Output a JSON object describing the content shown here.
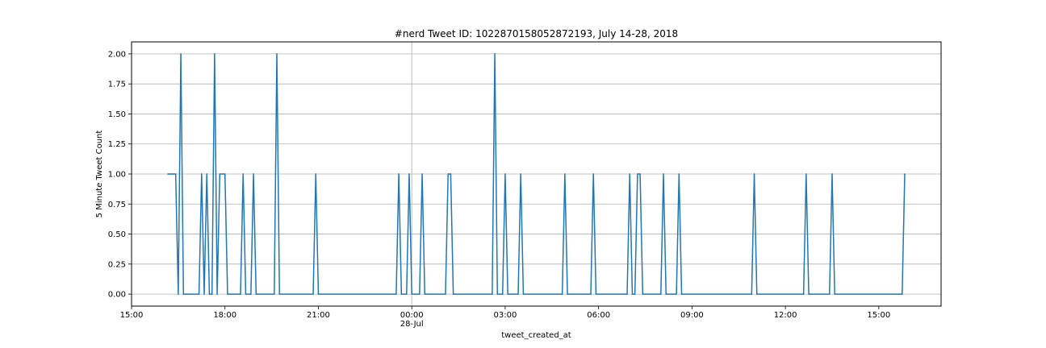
{
  "chart_data": {
    "type": "line",
    "title": "#nerd Tweet ID: 1022870158052872193, July 14-28, 2018",
    "xlabel": "tweet_created_at",
    "ylabel": "5 Minute Tweet Count",
    "xlim": [
      "2018-07-27T15:00",
      "2018-07-28T17:00"
    ],
    "ylim": [
      -0.1,
      2.1
    ],
    "grid": true,
    "x_ticks": [
      {
        "t": "2018-07-27T15:00",
        "label": "15:00",
        "sub": ""
      },
      {
        "t": "2018-07-27T18:00",
        "label": "18:00",
        "sub": ""
      },
      {
        "t": "2018-07-27T21:00",
        "label": "21:00",
        "sub": ""
      },
      {
        "t": "2018-07-28T00:00",
        "label": "00:00",
        "sub": "28-Jul"
      },
      {
        "t": "2018-07-28T03:00",
        "label": "03:00",
        "sub": ""
      },
      {
        "t": "2018-07-28T06:00",
        "label": "06:00",
        "sub": ""
      },
      {
        "t": "2018-07-28T09:00",
        "label": "09:00",
        "sub": ""
      },
      {
        "t": "2018-07-28T12:00",
        "label": "12:00",
        "sub": ""
      },
      {
        "t": "2018-07-28T15:00",
        "label": "15:00",
        "sub": ""
      }
    ],
    "y_ticks": [
      {
        "v": 0.0,
        "label": "0.00"
      },
      {
        "v": 0.25,
        "label": "0.25"
      },
      {
        "v": 0.5,
        "label": "0.50"
      },
      {
        "v": 0.75,
        "label": "0.75"
      },
      {
        "v": 1.0,
        "label": "1.00"
      },
      {
        "v": 1.25,
        "label": "1.25"
      },
      {
        "v": 1.5,
        "label": "1.50"
      },
      {
        "v": 1.75,
        "label": "1.75"
      },
      {
        "v": 2.0,
        "label": "2.00"
      }
    ],
    "series": [
      {
        "color": "#1f77b4",
        "points": [
          [
            "2018-07-27T16:10",
            1
          ],
          [
            "2018-07-27T16:15",
            1
          ],
          [
            "2018-07-27T16:20",
            1
          ],
          [
            "2018-07-27T16:25",
            1
          ],
          [
            "2018-07-27T16:30",
            0
          ],
          [
            "2018-07-27T16:35",
            2
          ],
          [
            "2018-07-27T16:40",
            0
          ],
          [
            "2018-07-27T16:45",
            0
          ],
          [
            "2018-07-27T17:10",
            0
          ],
          [
            "2018-07-27T17:15",
            1
          ],
          [
            "2018-07-27T17:20",
            0
          ],
          [
            "2018-07-27T17:25",
            1
          ],
          [
            "2018-07-27T17:30",
            0
          ],
          [
            "2018-07-27T17:35",
            0
          ],
          [
            "2018-07-27T17:40",
            2
          ],
          [
            "2018-07-27T17:45",
            0
          ],
          [
            "2018-07-27T17:50",
            1
          ],
          [
            "2018-07-27T18:00",
            1
          ],
          [
            "2018-07-27T18:05",
            0
          ],
          [
            "2018-07-27T18:30",
            0
          ],
          [
            "2018-07-27T18:35",
            1
          ],
          [
            "2018-07-27T18:40",
            0
          ],
          [
            "2018-07-27T18:50",
            0
          ],
          [
            "2018-07-27T18:55",
            1
          ],
          [
            "2018-07-27T19:00",
            0
          ],
          [
            "2018-07-27T19:35",
            0
          ],
          [
            "2018-07-27T19:40",
            2
          ],
          [
            "2018-07-27T19:45",
            0
          ],
          [
            "2018-07-27T20:50",
            0
          ],
          [
            "2018-07-27T20:55",
            1
          ],
          [
            "2018-07-27T21:00",
            0
          ],
          [
            "2018-07-27T23:30",
            0
          ],
          [
            "2018-07-27T23:35",
            1
          ],
          [
            "2018-07-27T23:40",
            0
          ],
          [
            "2018-07-27T23:50",
            0
          ],
          [
            "2018-07-27T23:55",
            1
          ],
          [
            "2018-07-28T00:00",
            0
          ],
          [
            "2018-07-28T00:15",
            0
          ],
          [
            "2018-07-28T00:20",
            1
          ],
          [
            "2018-07-28T00:25",
            0
          ],
          [
            "2018-07-28T01:05",
            0
          ],
          [
            "2018-07-28T01:10",
            1
          ],
          [
            "2018-07-28T01:15",
            1
          ],
          [
            "2018-07-28T01:20",
            0
          ],
          [
            "2018-07-28T02:35",
            0
          ],
          [
            "2018-07-28T02:40",
            2
          ],
          [
            "2018-07-28T02:45",
            0
          ],
          [
            "2018-07-28T02:55",
            0
          ],
          [
            "2018-07-28T03:00",
            1
          ],
          [
            "2018-07-28T03:05",
            0
          ],
          [
            "2018-07-28T03:25",
            0
          ],
          [
            "2018-07-28T03:30",
            1
          ],
          [
            "2018-07-28T03:35",
            0
          ],
          [
            "2018-07-28T04:50",
            0
          ],
          [
            "2018-07-28T04:55",
            1
          ],
          [
            "2018-07-28T05:00",
            0
          ],
          [
            "2018-07-28T05:45",
            0
          ],
          [
            "2018-07-28T05:50",
            1
          ],
          [
            "2018-07-28T05:55",
            0
          ],
          [
            "2018-07-28T06:55",
            0
          ],
          [
            "2018-07-28T07:00",
            1
          ],
          [
            "2018-07-28T07:05",
            0
          ],
          [
            "2018-07-28T07:10",
            0
          ],
          [
            "2018-07-28T07:15",
            1
          ],
          [
            "2018-07-28T07:20",
            1
          ],
          [
            "2018-07-28T07:25",
            0
          ],
          [
            "2018-07-28T08:00",
            0
          ],
          [
            "2018-07-28T08:05",
            1
          ],
          [
            "2018-07-28T08:10",
            0
          ],
          [
            "2018-07-28T08:30",
            0
          ],
          [
            "2018-07-28T08:35",
            1
          ],
          [
            "2018-07-28T08:40",
            0
          ],
          [
            "2018-07-28T10:55",
            0
          ],
          [
            "2018-07-28T11:00",
            1
          ],
          [
            "2018-07-28T11:05",
            0
          ],
          [
            "2018-07-28T12:35",
            0
          ],
          [
            "2018-07-28T12:40",
            1
          ],
          [
            "2018-07-28T12:45",
            0
          ],
          [
            "2018-07-28T13:25",
            0
          ],
          [
            "2018-07-28T13:30",
            1
          ],
          [
            "2018-07-28T13:35",
            0
          ],
          [
            "2018-07-28T15:45",
            0
          ],
          [
            "2018-07-28T15:50",
            1
          ]
        ]
      }
    ]
  }
}
